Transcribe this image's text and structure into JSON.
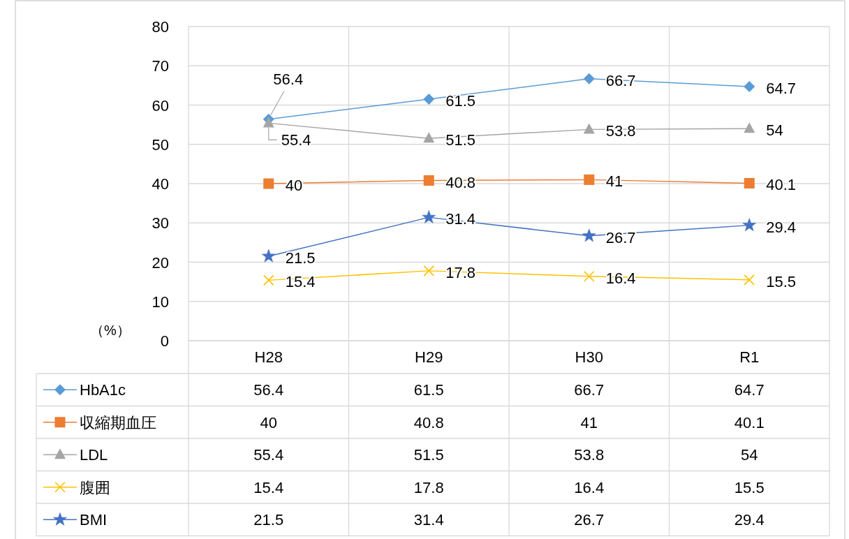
{
  "chart_data": {
    "type": "line",
    "ylabel": "（%）",
    "categories": [
      "H28",
      "H29",
      "H30",
      "R1"
    ],
    "series": [
      {
        "name": "HbA1c",
        "color": "#5b9bd5",
        "marker": "diamond",
        "values": [
          56.4,
          61.5,
          66.7,
          64.7
        ]
      },
      {
        "name": "収縮期血圧",
        "color": "#ed7d31",
        "marker": "square",
        "values": [
          40,
          40.8,
          41,
          40.1
        ]
      },
      {
        "name": "LDL",
        "color": "#a5a5a5",
        "marker": "triangle",
        "values": [
          55.4,
          51.5,
          53.8,
          54
        ]
      },
      {
        "name": "腹囲",
        "color": "#ffc000",
        "marker": "cross",
        "values": [
          15.4,
          17.8,
          16.4,
          15.5
        ]
      },
      {
        "name": "BMI",
        "color": "#4472c4",
        "marker": "star",
        "values": [
          21.5,
          31.4,
          26.7,
          29.4
        ]
      }
    ],
    "annotations": [
      {
        "text": "56.4",
        "x": "H28",
        "y": 56.4
      },
      {
        "text": "61.5",
        "x": "H29",
        "y": 61.5
      },
      {
        "text": "66.7",
        "x": "H30",
        "y": 66.7
      },
      {
        "text": "64.7",
        "x": "R1",
        "y": 64.7
      },
      {
        "text": "40",
        "x": "H28",
        "y": 40
      },
      {
        "text": "40.8",
        "x": "H29",
        "y": 40.8
      },
      {
        "text": "41",
        "x": "H30",
        "y": 41
      },
      {
        "text": "40.1",
        "x": "R1",
        "y": 40.1
      },
      {
        "text": "55.4",
        "x": "H28",
        "y": 55.4
      },
      {
        "text": "51.5",
        "x": "H29",
        "y": 51.5
      },
      {
        "text": "53.8",
        "x": "H30",
        "y": 53.8
      },
      {
        "text": "54",
        "x": "R1",
        "y": 54
      },
      {
        "text": "15.4",
        "x": "H28",
        "y": 15.4
      },
      {
        "text": "17.8",
        "x": "H29",
        "y": 17.8
      },
      {
        "text": "16.4",
        "x": "H30",
        "y": 16.4
      },
      {
        "text": "15.5",
        "x": "R1",
        "y": 15.5
      },
      {
        "text": "21.5",
        "x": "H28",
        "y": 21.5
      },
      {
        "text": "31.4",
        "x": "H29",
        "y": 31.4
      },
      {
        "text": "26.7",
        "x": "H30",
        "y": 26.7
      },
      {
        "text": "29.4",
        "x": "R1",
        "y": 29.4
      }
    ],
    "ylim": [
      0,
      80
    ],
    "yticks": [
      0,
      10,
      20,
      30,
      40,
      50,
      60,
      70,
      80
    ],
    "grid": "y",
    "legend": "bottom",
    "data_labels": true
  }
}
